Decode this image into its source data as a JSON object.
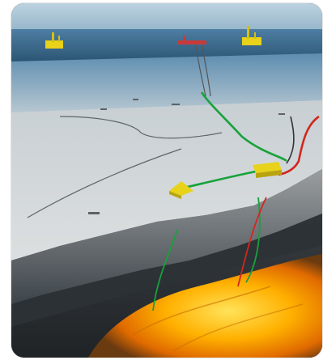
{
  "image": {
    "subject": "offshore-subsea-field-cutaway",
    "colors": {
      "sky_top": "#a8c6d8",
      "sea": "#5a86a8",
      "seabed": "#cfd5d8",
      "rock": "#8a8f92",
      "reservoir_hot": "#ffb000",
      "green_line": "#17a23b",
      "red_line": "#d0281e",
      "equipment": "#e8d21a"
    }
  }
}
